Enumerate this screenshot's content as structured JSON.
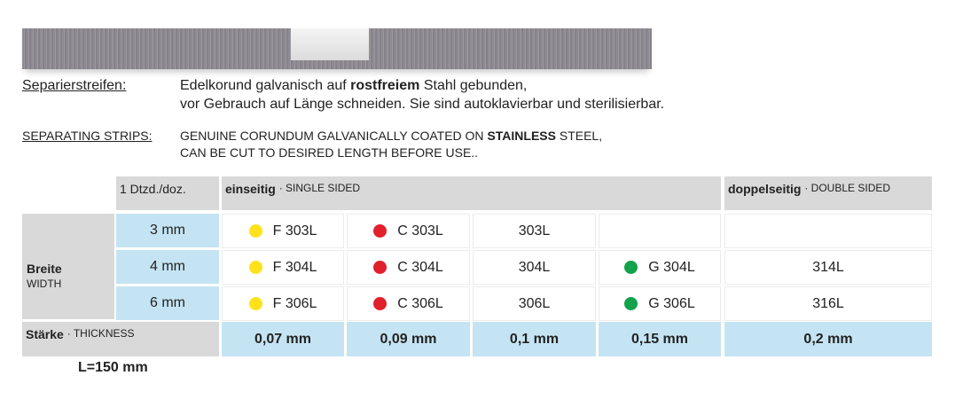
{
  "intro": {
    "de_label": "Separierstreifen:",
    "de_line1": [
      "Edelkorund galvanisch auf ",
      "rostfreiem",
      " Stahl gebunden,"
    ],
    "de_line2": "vor Gebrauch auf Länge schneiden. Sie sind autoklavierbar und sterilisierbar.",
    "en_label": "SEPARATING STRIPS:",
    "en_line1": [
      "GENUINE CORUNDUM GALVANICALLY COATED ON ",
      "STAINLESS",
      " STEEL,"
    ],
    "en_line2": "CAN BE CUT TO DESIRED LENGTH BEFORE USE.."
  },
  "table": {
    "header": {
      "qty": "1 Dtzd./doz.",
      "single": [
        "einseitig",
        "· SINGLE SIDED"
      ],
      "double": [
        "doppelseitig",
        "· DOUBLE SIDED"
      ]
    },
    "row_label": [
      "Breite",
      "WIDTH"
    ],
    "rows": [
      {
        "width": "3 mm",
        "cells": [
          "F 303L",
          "C 303L",
          "303L",
          null,
          null
        ]
      },
      {
        "width": "4 mm",
        "cells": [
          "F 304L",
          "C 304L",
          "304L",
          "G 304L",
          "314L"
        ]
      },
      {
        "width": "6 mm",
        "cells": [
          "F 306L",
          "C 306L",
          "306L",
          "G 306L",
          "316L"
        ]
      }
    ],
    "thickness_label": [
      "Stärke",
      "· THICKNESS"
    ],
    "thickness": [
      "0,07 mm",
      "0,09 mm",
      "0,1 mm",
      "0,15 mm",
      "0,2 mm"
    ]
  },
  "footer": "L=150 mm"
}
